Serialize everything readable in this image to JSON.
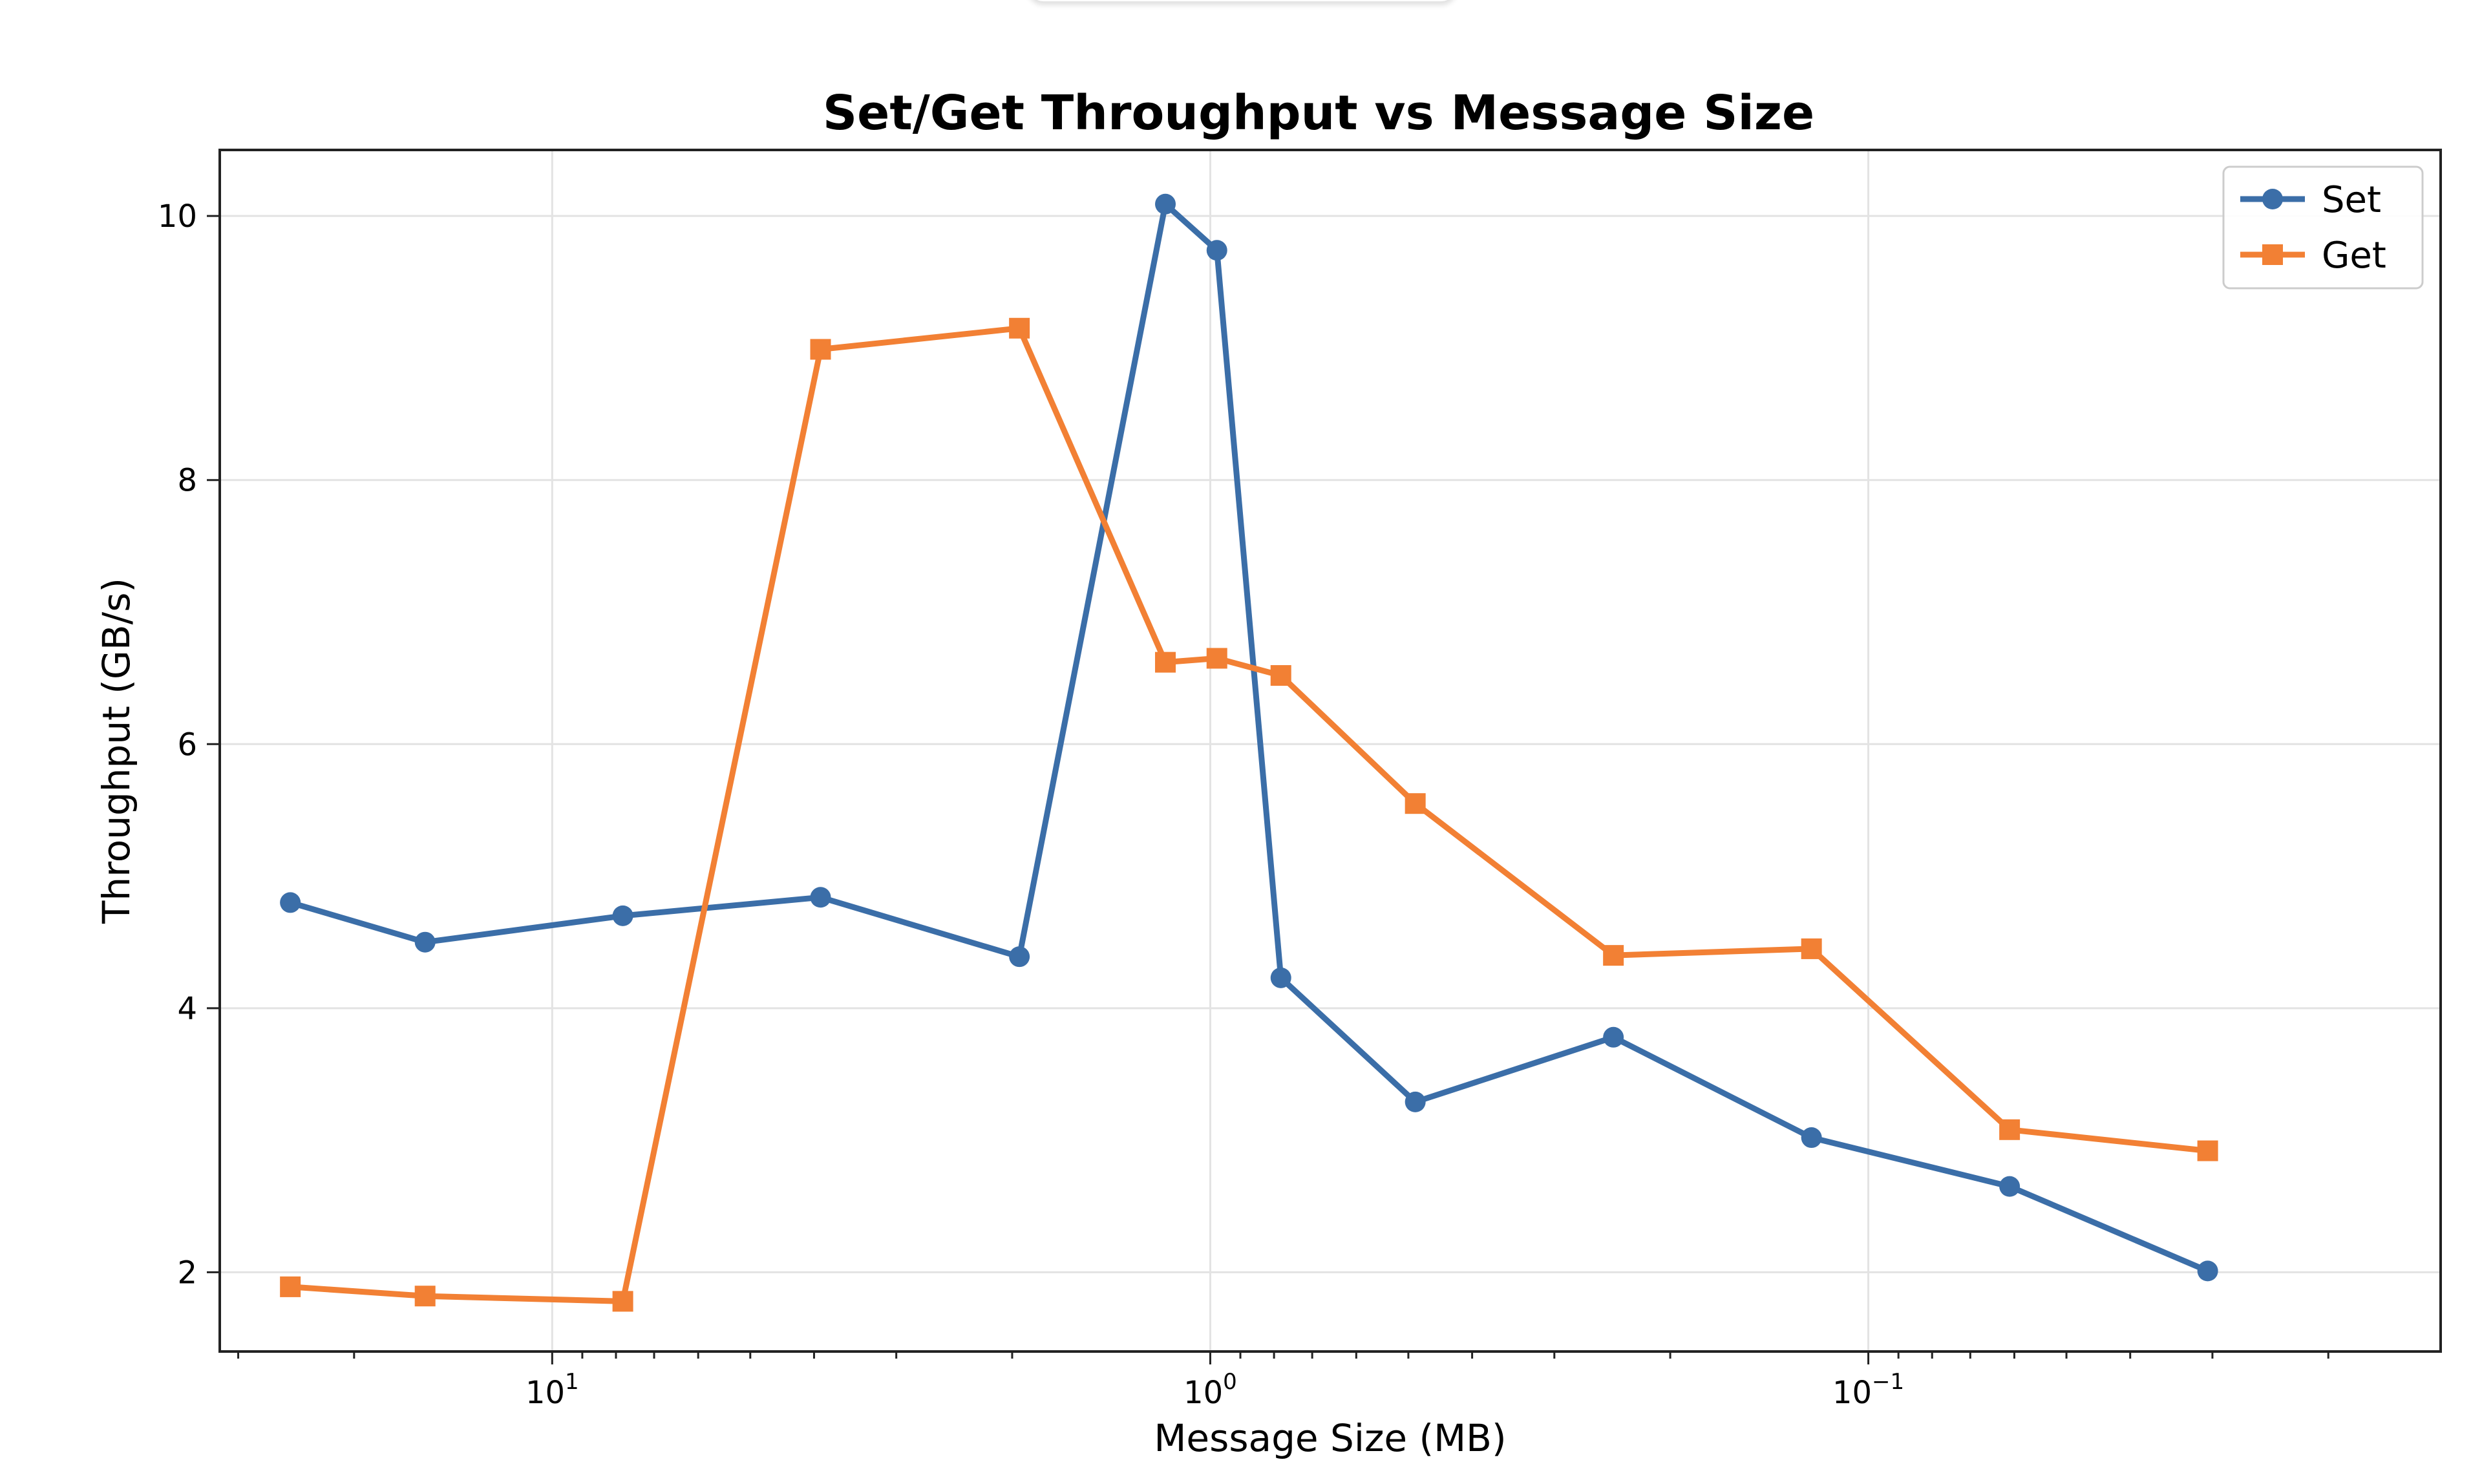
{
  "chart_data": {
    "type": "line",
    "title": "Set/Get Throughput vs Message Size",
    "xlabel": "Message Size (MB)",
    "ylabel": "Throughput (GB/s)",
    "x_scale": "log",
    "x_inverted": true,
    "xlim": [
      32,
      0.0135
    ],
    "ylim": [
      1.4,
      10.5
    ],
    "grid": true,
    "legend_position": "top-right",
    "x_ticks": [
      {
        "value": 10,
        "label": "10",
        "exp": "1"
      },
      {
        "value": 1,
        "label": "10",
        "exp": "0"
      },
      {
        "value": 0.1,
        "label": "10",
        "exp": "−1"
      }
    ],
    "y_ticks": [
      {
        "value": 2,
        "label": "2"
      },
      {
        "value": 4,
        "label": "4"
      },
      {
        "value": 6,
        "label": "6"
      },
      {
        "value": 8,
        "label": "8"
      },
      {
        "value": 10,
        "label": "10"
      }
    ],
    "x": [
      25,
      15.6,
      7.81,
      3.91,
      1.95,
      1.17,
      0.977,
      0.781,
      0.488,
      0.244,
      0.122,
      0.061,
      0.0305
    ],
    "series": [
      {
        "name": "Set",
        "color": "#3b6ea8",
        "marker": "circle",
        "values": [
          4.8,
          4.5,
          4.7,
          4.84,
          4.39,
          10.09,
          9.74,
          4.23,
          3.29,
          3.78,
          3.02,
          2.65,
          2.01
        ]
      },
      {
        "name": "Get",
        "color": "#f28034",
        "marker": "square",
        "values": [
          1.89,
          1.82,
          1.78,
          8.99,
          9.15,
          6.62,
          6.65,
          6.52,
          5.55,
          4.4,
          4.45,
          3.08,
          2.92
        ]
      }
    ]
  }
}
